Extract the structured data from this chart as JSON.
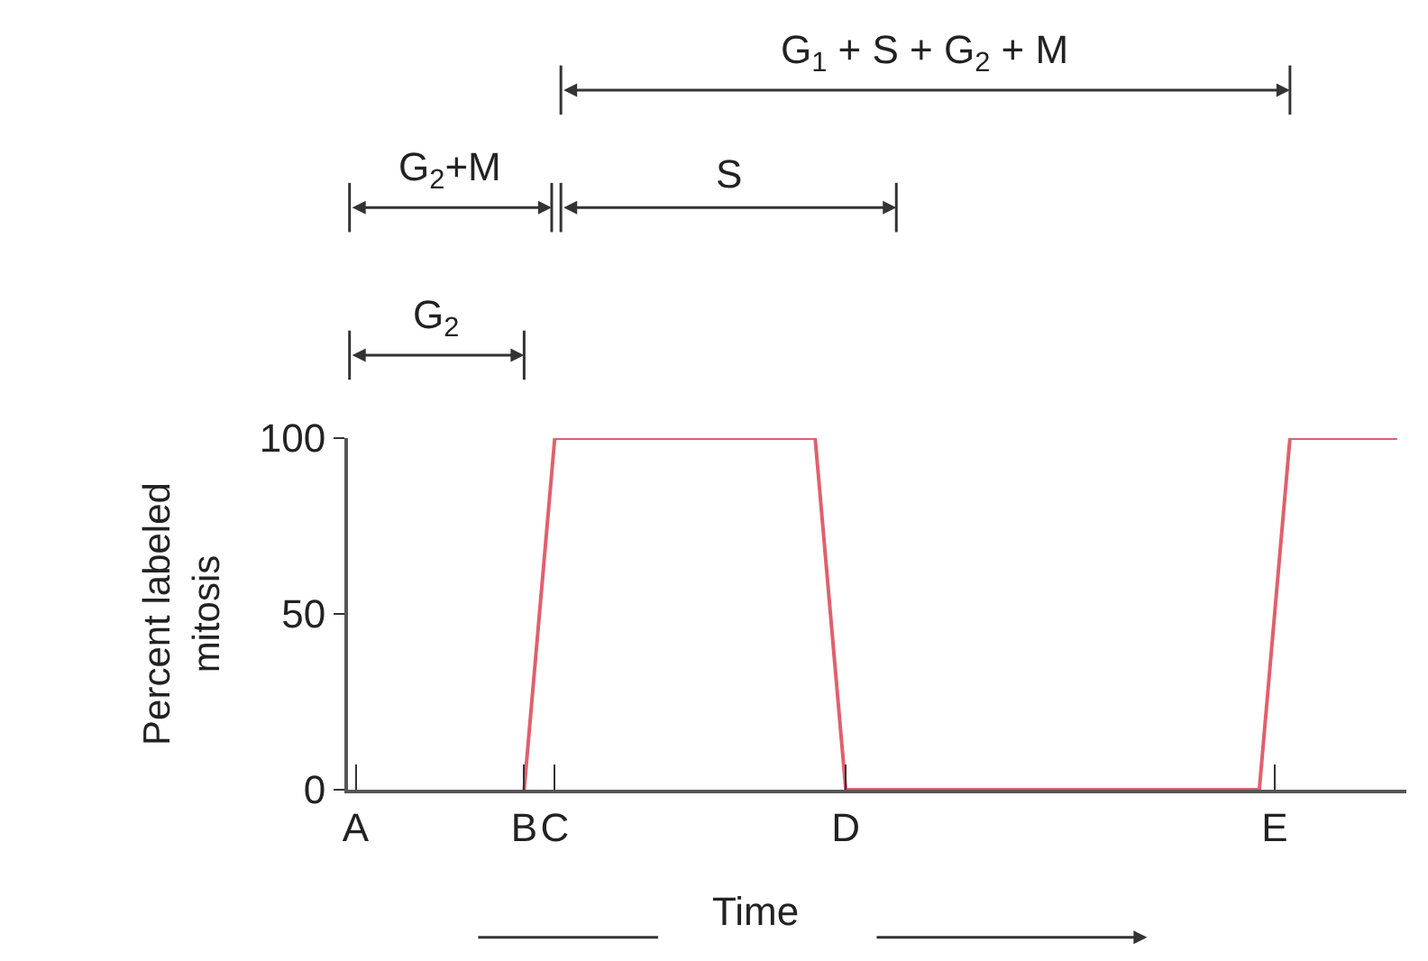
{
  "chart_data": {
    "type": "line",
    "xlabel": "Time",
    "ylabel": "Percent labeled\nmitosis",
    "categories": [
      "A",
      null,
      null,
      null,
      null,
      null,
      null,
      null,
      null,
      null,
      null,
      "B",
      null,
      "C",
      null,
      null,
      null,
      null,
      null,
      null,
      null,
      null,
      null,
      null,
      null,
      null,
      null,
      null,
      null,
      null,
      null,
      null,
      "D",
      null,
      null,
      null,
      null,
      null,
      null,
      null,
      null,
      null,
      null,
      null,
      null,
      null,
      null,
      null,
      null,
      null,
      null,
      null,
      null,
      null,
      null,
      null,
      null,
      null,
      null,
      null,
      "E",
      null,
      null,
      null,
      null,
      null,
      null,
      null,
      null
    ],
    "series": [
      {
        "color": "#e0606e",
        "values": [
          null,
          null,
          null,
          null,
          null,
          null,
          null,
          null,
          null,
          null,
          null,
          0,
          50,
          100,
          100,
          100,
          100,
          100,
          100,
          100,
          100,
          100,
          100,
          100,
          100,
          100,
          100,
          100,
          100,
          100,
          100,
          50,
          0,
          0,
          0,
          0,
          0,
          0,
          0,
          0,
          0,
          0,
          0,
          0,
          0,
          0,
          0,
          0,
          0,
          0,
          0,
          0,
          0,
          0,
          0,
          0,
          0,
          0,
          0,
          0,
          50,
          100,
          100,
          100,
          100,
          100,
          100,
          100,
          100
        ]
      }
    ],
    "ylim": [
      0,
      100
    ],
    "yticks": [
      0,
      50,
      100
    ],
    "annotations": [
      "G$_{1}$ + S + G$_{2}$ + M",
      "G$_{2}$+M",
      "S",
      "G$_{2}$"
    ],
    "marker": "none",
    "line_style": "solid"
  }
}
